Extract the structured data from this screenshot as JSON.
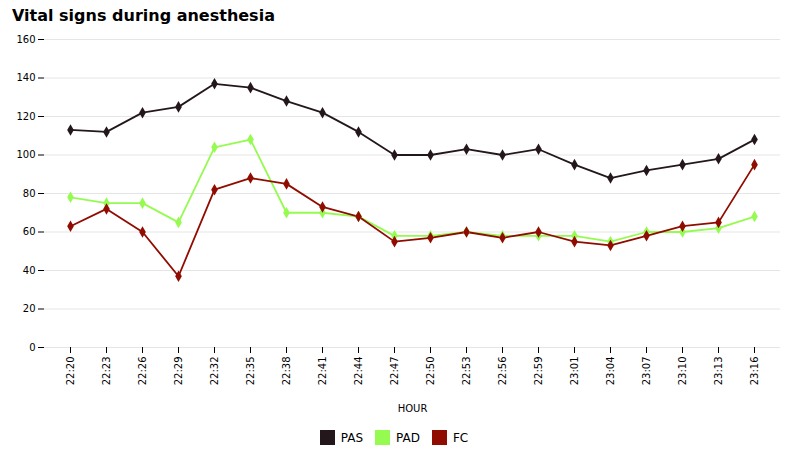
{
  "chart_data": {
    "type": "line",
    "title": "Vital signs during anesthesia",
    "xlabel": "HOUR",
    "categories": [
      "22:20",
      "22:23",
      "22:26",
      "22:29",
      "22:32",
      "22:35",
      "22:38",
      "22:41",
      "22:44",
      "22:47",
      "22:50",
      "22:53",
      "22:56",
      "22:59",
      "23:01",
      "23:04",
      "23:07",
      "23:10",
      "23:13",
      "23:16"
    ],
    "series": [
      {
        "name": "PAS",
        "values": [
          113,
          112,
          122,
          125,
          137,
          135,
          128,
          122,
          112,
          100,
          100,
          103,
          100,
          103,
          95,
          88,
          92,
          95,
          98,
          108
        ]
      },
      {
        "name": "PAD",
        "values": [
          78,
          75,
          75,
          65,
          104,
          108,
          70,
          70,
          68,
          58,
          58,
          60,
          58,
          58,
          58,
          55,
          60,
          60,
          62,
          68
        ]
      },
      {
        "name": "FC",
        "values": [
          63,
          72,
          60,
          37,
          82,
          88,
          85,
          73,
          68,
          55,
          57,
          60,
          57,
          60,
          55,
          53,
          58,
          63,
          65,
          95
        ]
      }
    ],
    "ylim": [
      0,
      160
    ],
    "yticks": [
      0,
      20,
      40,
      60,
      80,
      100,
      120,
      140,
      160
    ],
    "grid": true,
    "legend": "bottom",
    "marker": "diamond"
  }
}
